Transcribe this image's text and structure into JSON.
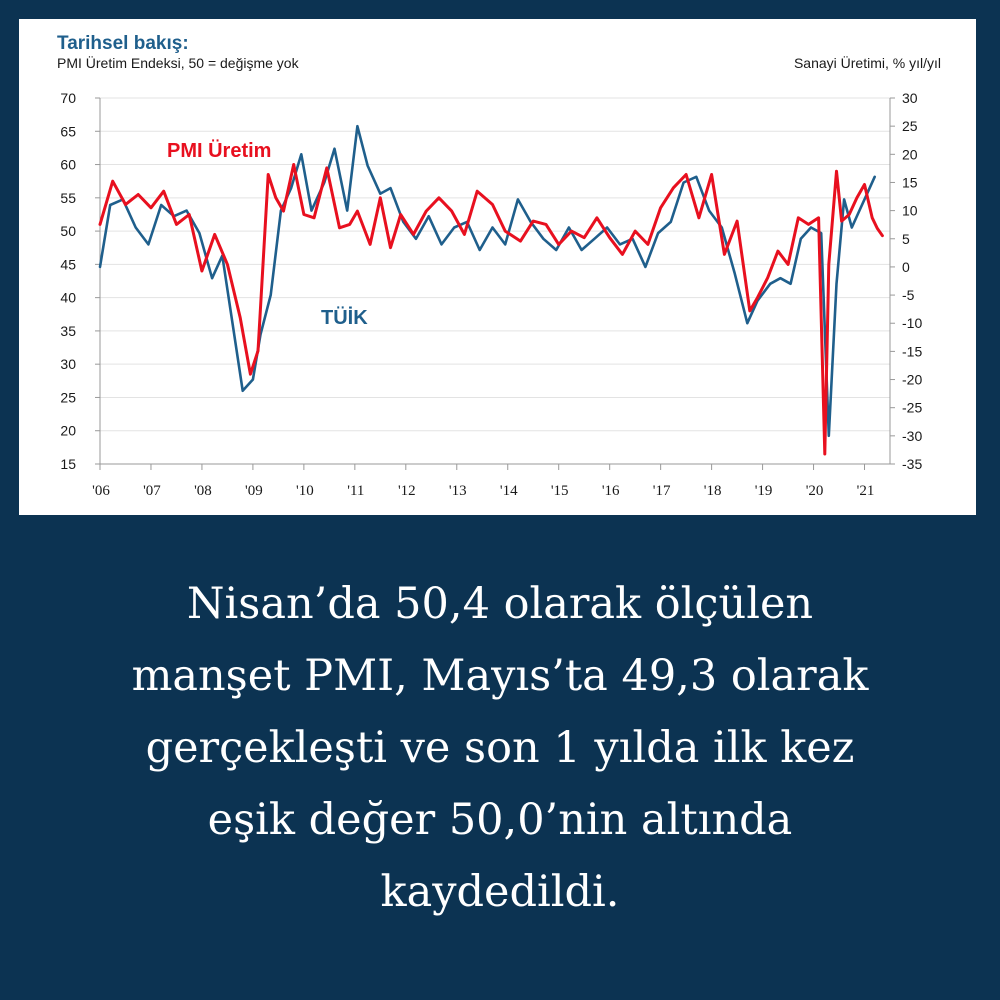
{
  "chart_data": {
    "type": "line",
    "title": "Tarihsel bakış:",
    "subtitle": "PMI Üretim Endeksi, 50 = değişme yok",
    "right_axis_title": "Sanayi Üretimi, % yıl/yıl",
    "x_ticks": [
      "'06",
      "'07",
      "'08",
      "'09",
      "'10",
      "'11",
      "'12",
      "'13",
      "'14",
      "'15",
      "'16",
      "'17",
      "'18",
      "'19",
      "'20",
      "'21"
    ],
    "y_left": {
      "range": [
        15,
        70
      ],
      "ticks": [
        "70",
        "65",
        "60",
        "55",
        "50",
        "45",
        "40",
        "35",
        "30",
        "25",
        "20",
        "15"
      ]
    },
    "y_right": {
      "range": [
        -35,
        30
      ],
      "ticks": [
        "30",
        "25",
        "20",
        "15",
        "10",
        "5",
        "0",
        "-5",
        "-10",
        "-15",
        "-20",
        "-25",
        "-30",
        "-35"
      ]
    },
    "grid": true,
    "series": [
      {
        "name": "PMI Üretim",
        "axis": "left",
        "color": "#e8101f",
        "x": [
          2006.0,
          2006.25,
          2006.5,
          2006.75,
          2007.0,
          2007.25,
          2007.5,
          2007.75,
          2008.0,
          2008.25,
          2008.5,
          2008.75,
          2008.95,
          2009.1,
          2009.3,
          2009.45,
          2009.6,
          2009.8,
          2010.0,
          2010.2,
          2010.45,
          2010.7,
          2010.9,
          2011.05,
          2011.3,
          2011.5,
          2011.7,
          2011.9,
          2012.15,
          2012.4,
          2012.65,
          2012.9,
          2013.15,
          2013.4,
          2013.7,
          2013.95,
          2014.25,
          2014.5,
          2014.75,
          2015.0,
          2015.25,
          2015.5,
          2015.75,
          2016.0,
          2016.25,
          2016.5,
          2016.75,
          2017.0,
          2017.25,
          2017.5,
          2017.75,
          2018.0,
          2018.25,
          2018.5,
          2018.75,
          2018.9,
          2019.1,
          2019.3,
          2019.5,
          2019.7,
          2019.9,
          2020.1,
          2020.22,
          2020.3,
          2020.45,
          2020.55,
          2020.7,
          2020.85,
          2021.0,
          2021.15,
          2021.25,
          2021.35
        ],
        "y": [
          51,
          57.5,
          54,
          55.5,
          53.5,
          56,
          51,
          52.5,
          44,
          49.5,
          45,
          37,
          28.5,
          32,
          58.5,
          55,
          53,
          60,
          52.5,
          52,
          59.5,
          50.5,
          51,
          53,
          48,
          55,
          47.5,
          52.5,
          49.5,
          53,
          55,
          53,
          49.5,
          56,
          54,
          50,
          48.5,
          51.5,
          51,
          48,
          50,
          49,
          52,
          49,
          46.5,
          50,
          48,
          53.5,
          56.5,
          58.5,
          52,
          58.5,
          46.5,
          51.5,
          38,
          40,
          43,
          47,
          45,
          52,
          51,
          52,
          16.5,
          45,
          59,
          51.5,
          52.5,
          55,
          57,
          52,
          50.4,
          49.3
        ]
      },
      {
        "name": "TÜİK",
        "axis": "right",
        "color": "#1f5f8c",
        "x": [
          2006.0,
          2006.2,
          2006.45,
          2006.7,
          2006.95,
          2007.2,
          2007.45,
          2007.7,
          2007.95,
          2008.2,
          2008.4,
          2008.6,
          2008.8,
          2009.0,
          2009.15,
          2009.35,
          2009.55,
          2009.75,
          2009.95,
          2010.15,
          2010.4,
          2010.6,
          2010.85,
          2011.05,
          2011.25,
          2011.5,
          2011.7,
          2011.95,
          2012.2,
          2012.45,
          2012.7,
          2012.95,
          2013.2,
          2013.45,
          2013.7,
          2013.95,
          2014.2,
          2014.45,
          2014.7,
          2014.95,
          2015.2,
          2015.45,
          2015.7,
          2015.95,
          2016.2,
          2016.45,
          2016.7,
          2016.95,
          2017.2,
          2017.45,
          2017.7,
          2017.95,
          2018.2,
          2018.45,
          2018.7,
          2018.9,
          2019.15,
          2019.35,
          2019.55,
          2019.75,
          2019.95,
          2020.15,
          2020.3,
          2020.45,
          2020.6,
          2020.75,
          2020.9,
          2021.05,
          2021.2
        ],
        "y": [
          0,
          11,
          12,
          7,
          4,
          11,
          9,
          10,
          6,
          -2,
          2,
          -10,
          -22,
          -20,
          -12,
          -5,
          10,
          14,
          20,
          10,
          15,
          21,
          10,
          25,
          18,
          13,
          14,
          8,
          5,
          9,
          4,
          7,
          8,
          3,
          7,
          4,
          12,
          8,
          5,
          3,
          7,
          3,
          5,
          7,
          4,
          5,
          0,
          6,
          8,
          15,
          16,
          10,
          7,
          -1,
          -10,
          -6,
          -3,
          -2,
          -3,
          5,
          7,
          6,
          -30,
          -3,
          12,
          7,
          10,
          13,
          16
        ]
      }
    ],
    "annotations": [
      "PMI Üretim",
      "TÜİK"
    ]
  },
  "caption": {
    "lines": [
      "Nisan’da 50,4 olarak ölçülen",
      "manşet PMI, Mayıs’ta 49,3 olarak",
      "gerçekleşti ve son 1 yılda ilk kez",
      "eşik değer 50,0’nin altında",
      "kaydedildi."
    ]
  }
}
